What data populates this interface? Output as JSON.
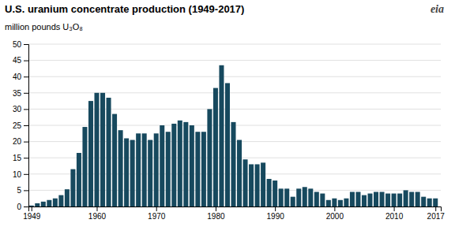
{
  "chart_data": {
    "type": "bar",
    "title": "U.S. uranium concentrate production (1949-2017)",
    "y_label": "million pounds U₃O₈",
    "annotations": [
      "eia"
    ],
    "x": [
      1949,
      1950,
      1951,
      1952,
      1953,
      1954,
      1955,
      1956,
      1957,
      1958,
      1959,
      1960,
      1961,
      1962,
      1963,
      1964,
      1965,
      1966,
      1967,
      1968,
      1969,
      1970,
      1971,
      1972,
      1973,
      1974,
      1975,
      1976,
      1977,
      1978,
      1979,
      1980,
      1981,
      1982,
      1983,
      1984,
      1985,
      1986,
      1987,
      1988,
      1989,
      1990,
      1991,
      1992,
      1993,
      1994,
      1995,
      1996,
      1997,
      1998,
      1999,
      2000,
      2001,
      2002,
      2003,
      2004,
      2005,
      2006,
      2007,
      2008,
      2009,
      2010,
      2011,
      2012,
      2013,
      2014,
      2015,
      2016,
      2017
    ],
    "values": [
      0.3,
      1.0,
      1.5,
      2.0,
      2.5,
      3.5,
      5.3,
      11.5,
      16.5,
      24.5,
      32.5,
      35.0,
      35.0,
      33.5,
      28.5,
      23.5,
      21.0,
      20.5,
      22.5,
      22.5,
      20.5,
      22.5,
      25.0,
      23.0,
      25.5,
      26.5,
      26.0,
      25.0,
      23.0,
      23.0,
      30.0,
      36.5,
      43.5,
      38.0,
      26.0,
      20.5,
      14.5,
      13.0,
      13.0,
      13.5,
      8.5,
      8.0,
      5.5,
      5.5,
      3.0,
      5.5,
      6.0,
      5.5,
      4.5,
      4.0,
      2.0,
      2.5,
      2.0,
      2.5,
      4.5,
      4.5,
      3.5,
      4.0,
      4.5,
      4.5,
      4.0,
      4.0,
      4.0,
      5.0,
      4.5,
      4.5,
      3.0,
      2.5,
      2.5
    ],
    "color": "#17495e",
    "xlim": [
      1948.5,
      2017.9
    ],
    "xticks": [
      1949,
      1960,
      1970,
      1980,
      1990,
      2000,
      2010,
      2017
    ],
    "ylim": [
      0,
      50
    ],
    "yticks": [
      0,
      5,
      10,
      15,
      20,
      25,
      30,
      35,
      40,
      45,
      50
    ],
    "grid": true
  }
}
